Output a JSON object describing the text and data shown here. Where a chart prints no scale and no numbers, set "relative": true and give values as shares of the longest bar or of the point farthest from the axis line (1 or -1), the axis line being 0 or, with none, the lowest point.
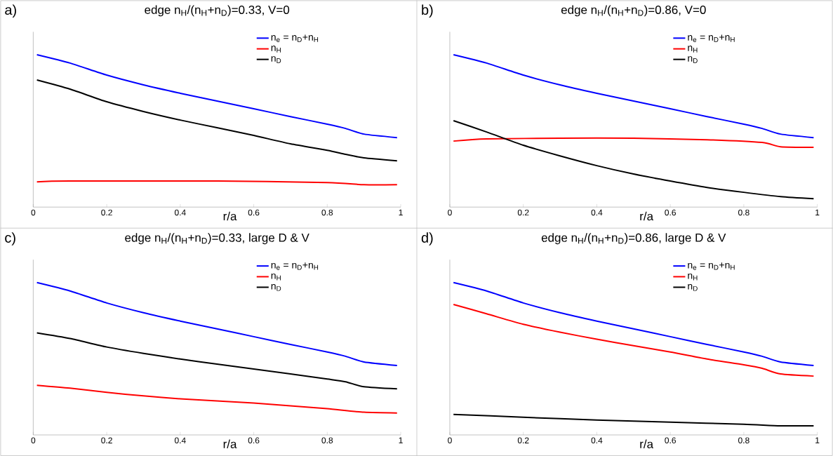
{
  "chart_data": [
    {
      "type": "line",
      "title": "edge n$_{H}$/(n$_{H}$+n$_{D}$)=0.33, V=0",
      "xlabel": "r/a",
      "annotations": [
        "a)"
      ],
      "relative": true,
      "xlim": [
        0,
        1
      ],
      "xticks": [
        0,
        0.2,
        0.4,
        0.6,
        0.8,
        1
      ],
      "tick_labels": "x",
      "legend": "top right",
      "grid": false,
      "marker": "none",
      "line_style": "solid",
      "series": [
        {
          "name": "n$_{e}$ = n$_{D}$+n$_{H}$",
          "color": "#0000ff",
          "x": [
            0.01,
            0.1,
            0.2,
            0.3,
            0.4,
            0.5,
            0.6,
            0.7,
            0.8,
            0.85,
            0.9,
            0.99
          ],
          "values": [
            1,
            0.945,
            0.866,
            0.802,
            0.747,
            0.696,
            0.645,
            0.594,
            0.544,
            0.516,
            0.479,
            0.456
          ]
        },
        {
          "name": "n$_{H}$",
          "color": "#ff0000",
          "x": [
            0.01,
            0.1,
            0.5,
            0.8,
            0.9,
            0.99
          ],
          "values": [
            0.166,
            0.171,
            0.171,
            0.161,
            0.147,
            0.147
          ]
        },
        {
          "name": "n$_{D}$",
          "color": "#000000",
          "x": [
            0.01,
            0.1,
            0.2,
            0.3,
            0.4,
            0.5,
            0.6,
            0.7,
            0.8,
            0.85,
            0.9,
            0.99
          ],
          "values": [
            0.834,
            0.774,
            0.691,
            0.627,
            0.571,
            0.521,
            0.47,
            0.415,
            0.373,
            0.346,
            0.323,
            0.304
          ]
        }
      ]
    },
    {
      "type": "line",
      "title": "edge n$_{H}$/(n$_{H}$+n$_{D}$)=0.86, V=0",
      "xlabel": "r/a",
      "annotations": [
        "b)"
      ],
      "relative": true,
      "xlim": [
        0,
        1
      ],
      "xticks": [
        0,
        0.2,
        0.4,
        0.6,
        0.8,
        1
      ],
      "tick_labels": "x",
      "legend": "top right",
      "grid": false,
      "marker": "none",
      "line_style": "solid",
      "series": [
        {
          "name": "n$_{e}$ = n$_{D}$+n$_{H}$",
          "color": "#0000ff",
          "x": [
            0.01,
            0.1,
            0.2,
            0.3,
            0.4,
            0.5,
            0.6,
            0.7,
            0.8,
            0.85,
            0.9,
            0.99
          ],
          "values": [
            1,
            0.945,
            0.866,
            0.802,
            0.747,
            0.696,
            0.645,
            0.594,
            0.544,
            0.516,
            0.479,
            0.456
          ]
        },
        {
          "name": "n$_{H}$",
          "color": "#ff0000",
          "x": [
            0.01,
            0.1,
            0.3,
            0.5,
            0.7,
            0.85,
            0.9,
            0.99
          ],
          "values": [
            0.433,
            0.447,
            0.452,
            0.452,
            0.442,
            0.424,
            0.396,
            0.392
          ]
        },
        {
          "name": "n$_{D}$",
          "color": "#000000",
          "x": [
            0.01,
            0.1,
            0.2,
            0.3,
            0.4,
            0.5,
            0.6,
            0.7,
            0.8,
            0.9,
            0.99
          ],
          "values": [
            0.567,
            0.493,
            0.406,
            0.336,
            0.272,
            0.217,
            0.171,
            0.129,
            0.097,
            0.069,
            0.055
          ]
        }
      ]
    },
    {
      "type": "line",
      "title": "edge n$_{H}$/(n$_{H}$+n$_{D}$)=0.33, large D & V",
      "xlabel": "r/a",
      "annotations": [
        "c)"
      ],
      "relative": true,
      "xlim": [
        0,
        1
      ],
      "xticks": [
        0,
        0.2,
        0.4,
        0.6,
        0.8,
        1
      ],
      "tick_labels": "x",
      "legend": "top right",
      "grid": false,
      "marker": "none",
      "line_style": "solid",
      "series": [
        {
          "name": "n$_{e}$ = n$_{D}$+n$_{H}$",
          "color": "#0000ff",
          "x": [
            0.01,
            0.1,
            0.2,
            0.3,
            0.4,
            0.5,
            0.6,
            0.7,
            0.8,
            0.85,
            0.9,
            0.99
          ],
          "values": [
            1,
            0.945,
            0.866,
            0.802,
            0.747,
            0.696,
            0.645,
            0.594,
            0.544,
            0.516,
            0.479,
            0.456
          ]
        },
        {
          "name": "n$_{H}$",
          "color": "#ff0000",
          "x": [
            0.01,
            0.1,
            0.2,
            0.3,
            0.4,
            0.5,
            0.6,
            0.7,
            0.8,
            0.9,
            0.99
          ],
          "values": [
            0.326,
            0.307,
            0.279,
            0.256,
            0.237,
            0.223,
            0.209,
            0.191,
            0.172,
            0.149,
            0.144
          ]
        },
        {
          "name": "n$_{D}$",
          "color": "#000000",
          "x": [
            0.01,
            0.1,
            0.2,
            0.3,
            0.4,
            0.5,
            0.6,
            0.7,
            0.8,
            0.85,
            0.9,
            0.99
          ],
          "values": [
            0.67,
            0.633,
            0.577,
            0.535,
            0.498,
            0.465,
            0.433,
            0.4,
            0.367,
            0.349,
            0.316,
            0.302
          ]
        }
      ]
    },
    {
      "type": "line",
      "title": "edge n$_{H}$/(n$_{H}$+n$_{D}$)=0.86, large D & V",
      "xlabel": "r/a",
      "annotations": [
        "d)"
      ],
      "relative": true,
      "xlim": [
        0,
        1
      ],
      "xticks": [
        0,
        0.2,
        0.4,
        0.6,
        0.8,
        1
      ],
      "tick_labels": "x",
      "legend": "top right",
      "grid": false,
      "marker": "none",
      "line_style": "solid",
      "series": [
        {
          "name": "n$_{e}$ = n$_{D}$+n$_{H}$",
          "color": "#0000ff",
          "x": [
            0.01,
            0.1,
            0.2,
            0.3,
            0.4,
            0.5,
            0.6,
            0.7,
            0.8,
            0.85,
            0.9,
            0.99
          ],
          "values": [
            1,
            0.945,
            0.866,
            0.802,
            0.747,
            0.696,
            0.645,
            0.594,
            0.544,
            0.516,
            0.479,
            0.456
          ]
        },
        {
          "name": "n$_{H}$",
          "color": "#ff0000",
          "x": [
            0.01,
            0.1,
            0.2,
            0.3,
            0.4,
            0.5,
            0.6,
            0.7,
            0.8,
            0.85,
            0.9,
            0.99
          ],
          "values": [
            0.856,
            0.795,
            0.726,
            0.674,
            0.628,
            0.586,
            0.544,
            0.498,
            0.46,
            0.437,
            0.4,
            0.386
          ]
        },
        {
          "name": "n$_{D}$",
          "color": "#000000",
          "x": [
            0.01,
            0.2,
            0.4,
            0.6,
            0.8,
            0.9,
            0.99
          ],
          "values": [
            0.135,
            0.116,
            0.098,
            0.084,
            0.07,
            0.06,
            0.06
          ]
        }
      ]
    }
  ]
}
